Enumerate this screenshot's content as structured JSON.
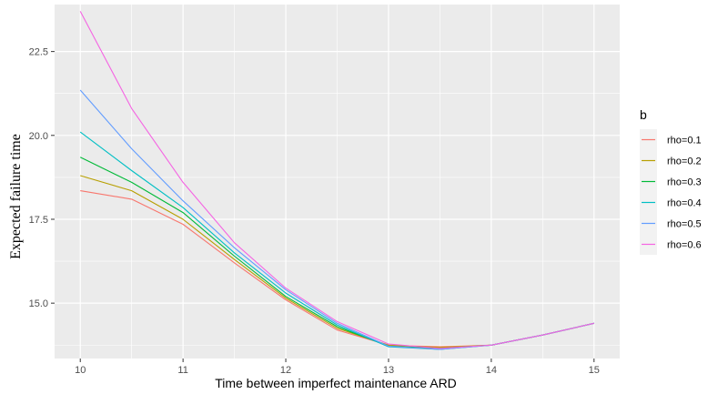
{
  "chart_data": {
    "type": "line",
    "xlabel": "Time between imperfect maintenance ARD",
    "ylabel": "Expected failure time",
    "xlim": [
      9.75,
      15.25
    ],
    "ylim": [
      13.35,
      23.9
    ],
    "x_ticks": [
      10,
      11,
      12,
      13,
      14,
      15
    ],
    "x_tick_labels": [
      "10",
      "11",
      "12",
      "13",
      "14",
      "15"
    ],
    "y_ticks": [
      15.0,
      17.5,
      20.0,
      22.5
    ],
    "y_tick_labels": [
      "15.0",
      "17.5",
      "20.0",
      "22.5"
    ],
    "grid": true,
    "legend": {
      "title": "b",
      "position": "right"
    },
    "x": [
      10,
      10.5,
      11,
      11.5,
      12,
      12.5,
      13,
      13.5,
      14,
      14.5,
      15
    ],
    "series": [
      {
        "name": "rho=0.1",
        "color": "#F8766D",
        "values": [
          18.35,
          18.1,
          17.35,
          16.2,
          15.1,
          14.2,
          13.75,
          13.7,
          13.75,
          14.05,
          14.4
        ]
      },
      {
        "name": "rho=0.2",
        "color": "#B79F00",
        "values": [
          18.8,
          18.35,
          17.5,
          16.3,
          15.15,
          14.25,
          13.75,
          13.68,
          13.75,
          14.05,
          14.4
        ]
      },
      {
        "name": "rho=0.3",
        "color": "#00BA38",
        "values": [
          19.35,
          18.6,
          17.7,
          16.4,
          15.2,
          14.3,
          13.72,
          13.65,
          13.75,
          14.05,
          14.4
        ]
      },
      {
        "name": "rho=0.4",
        "color": "#00BFC4",
        "values": [
          20.1,
          18.95,
          17.85,
          16.5,
          15.3,
          14.35,
          13.7,
          13.62,
          13.75,
          14.05,
          14.4
        ]
      },
      {
        "name": "rho=0.5",
        "color": "#619CFF",
        "values": [
          21.35,
          19.6,
          18.05,
          16.65,
          15.4,
          14.4,
          13.72,
          13.62,
          13.75,
          14.05,
          14.4
        ]
      },
      {
        "name": "rho=0.6",
        "color": "#F564E3",
        "values": [
          23.7,
          20.8,
          18.6,
          16.8,
          15.45,
          14.45,
          13.78,
          13.65,
          13.75,
          14.05,
          14.4
        ]
      }
    ]
  }
}
